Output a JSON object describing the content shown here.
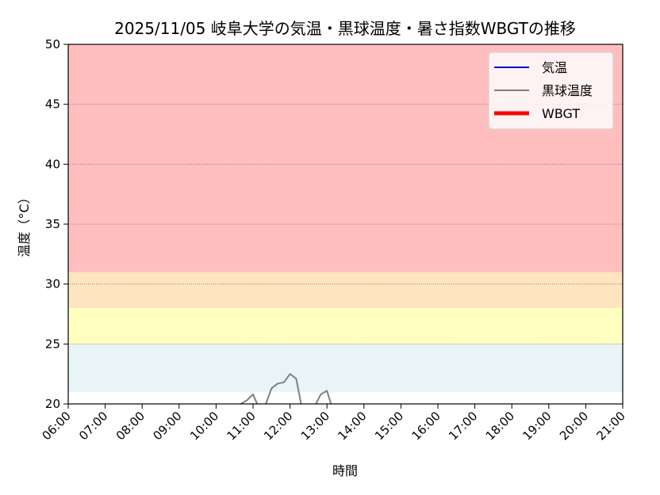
{
  "chart_data": {
    "type": "line",
    "title": "2025/11/05 岐阜大学の気温・黒球温度・暑さ指数WBGTの推移",
    "xlabel": "時間",
    "ylabel": "温度（°C）",
    "ylim": [
      20,
      50
    ],
    "xlim": [
      "06:00",
      "21:00"
    ],
    "x_ticks": [
      "06:00",
      "07:00",
      "08:00",
      "09:00",
      "10:00",
      "11:00",
      "12:00",
      "13:00",
      "14:00",
      "15:00",
      "16:00",
      "17:00",
      "18:00",
      "19:00",
      "20:00",
      "21:00"
    ],
    "y_ticks": [
      20,
      25,
      30,
      35,
      40,
      45,
      50
    ],
    "grid": "horizontal dotted",
    "legend_position": "top-right",
    "bands": [
      {
        "from": 21,
        "to": 25,
        "color": "#e8f4f6"
      },
      {
        "from": 25,
        "to": 28,
        "color": "#ffffc0"
      },
      {
        "from": 28,
        "to": 31,
        "color": "#ffe4c0"
      },
      {
        "from": 31,
        "to": 50,
        "color": "#ffbfbf"
      }
    ],
    "series": [
      {
        "name": "気温",
        "color": "#0000cc",
        "width": 2,
        "x": [],
        "values": []
      },
      {
        "name": "黒球温度",
        "color": "#808080",
        "width": 2,
        "x": [
          "10:40",
          "10:50",
          "11:00",
          "11:10",
          "11:20",
          "11:30",
          "11:40",
          "11:50",
          "12:00",
          "12:10",
          "12:20",
          "12:30",
          "12:40",
          "12:50",
          "13:00",
          "13:10"
        ],
        "values": [
          20.0,
          20.3,
          20.8,
          19.6,
          19.9,
          21.3,
          21.7,
          21.8,
          22.5,
          22.1,
          19.5,
          19.8,
          19.8,
          20.8,
          21.1,
          19.4
        ]
      },
      {
        "name": "WBGT",
        "color": "#ff0000",
        "width": 5,
        "x": [],
        "values": []
      }
    ]
  }
}
